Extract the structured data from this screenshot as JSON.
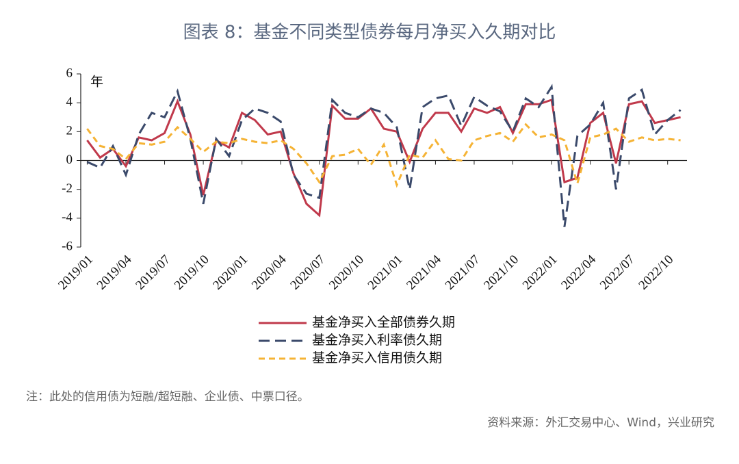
{
  "chart_data": {
    "type": "line",
    "title": "图表 8：基金不同类型债券每月净买入久期对比",
    "y_unit": "年",
    "categories": [
      "2019/01",
      null,
      null,
      "2019/04",
      null,
      null,
      "2019/07",
      null,
      null,
      "2019/10",
      null,
      null,
      "2020/01",
      null,
      null,
      "2020/04",
      null,
      null,
      "2020/07",
      null,
      null,
      "2020/10",
      null,
      null,
      "2021/01",
      null,
      null,
      "2021/04",
      null,
      null,
      "2021/07",
      null,
      null,
      "2021/10",
      null,
      null,
      "2022/01",
      null,
      null,
      "2022/04",
      null,
      null,
      "2022/07",
      null,
      null,
      "2022/10",
      null
    ],
    "series": [
      {
        "name": "基金净买入全部债券久期",
        "color": "#c0394b",
        "dash": "solid",
        "values": [
          1.4,
          0.2,
          0.8,
          -0.4,
          1.6,
          1.4,
          1.9,
          4.1,
          1.8,
          -2.4,
          1.4,
          0.9,
          3.3,
          2.8,
          1.8,
          2.0,
          -0.9,
          -3.0,
          -3.8,
          3.8,
          2.9,
          2.9,
          3.6,
          2.2,
          2.0,
          -0.1,
          2.2,
          3.3,
          3.3,
          2.0,
          3.6,
          3.3,
          3.7,
          1.9,
          3.9,
          3.9,
          4.2,
          -1.5,
          -1.2,
          2.6,
          3.3,
          -0.2,
          3.9,
          4.1,
          2.6,
          2.8,
          3.0
        ]
      },
      {
        "name": "基金净买入利率债久期",
        "color": "#3b4a6b",
        "dash": "dashed",
        "values": [
          -0.1,
          -0.5,
          1.0,
          -1.0,
          1.8,
          3.3,
          3.0,
          4.8,
          1.5,
          -3.0,
          1.5,
          0.3,
          2.8,
          3.6,
          3.3,
          2.7,
          -1.0,
          -2.3,
          -2.6,
          4.2,
          3.3,
          3.0,
          3.6,
          3.3,
          2.3,
          -2.0,
          3.7,
          4.3,
          4.5,
          2.4,
          4.4,
          3.8,
          3.4,
          2.0,
          4.3,
          3.7,
          5.1,
          -4.6,
          1.7,
          2.5,
          4.0,
          -2.0,
          4.3,
          4.9,
          1.8,
          2.8,
          3.5
        ]
      },
      {
        "name": "基金净买入信用债久期",
        "color": "#f5b335",
        "dash": "dotted",
        "values": [
          2.2,
          1.0,
          0.8,
          0.1,
          1.2,
          1.1,
          1.3,
          2.3,
          1.5,
          0.6,
          1.3,
          1.2,
          1.5,
          1.3,
          1.2,
          1.4,
          0.8,
          -0.2,
          -1.5,
          0.3,
          0.4,
          0.8,
          -0.3,
          1.1,
          -1.7,
          0.4,
          0.2,
          1.4,
          0.1,
          0.0,
          1.4,
          1.7,
          1.9,
          1.3,
          2.5,
          1.6,
          1.8,
          1.4,
          -1.6,
          1.6,
          1.8,
          2.2,
          1.3,
          1.6,
          1.4,
          1.5,
          1.4
        ]
      }
    ],
    "ylim": [
      -6,
      6
    ],
    "yticks": [
      -6,
      -4,
      -2,
      0,
      2,
      4,
      6
    ],
    "note": "注：此处的信用债为短融/超短融、企业债、中票口径。",
    "source": "资料来源：外汇交易中心、Wind，兴业研究"
  }
}
